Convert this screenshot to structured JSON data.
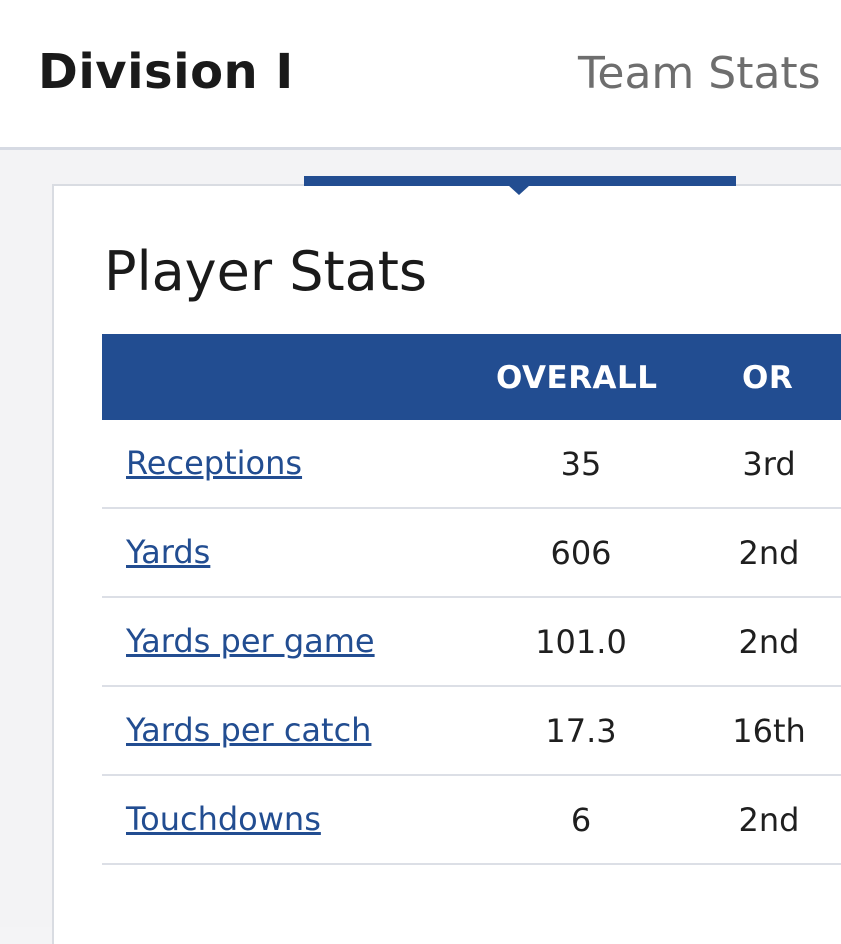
{
  "header": {
    "title": "Division I",
    "tab_team_stats": "Team Stats"
  },
  "section": {
    "title": "Player Stats"
  },
  "table": {
    "columns": [
      "",
      "OVERALL",
      "OR"
    ],
    "rows": [
      {
        "label": "Receptions",
        "overall": "35",
        "or": "3rd"
      },
      {
        "label": "Yards",
        "overall": "606",
        "or": "2nd"
      },
      {
        "label": "Yards per game",
        "overall": "101.0",
        "or": "2nd"
      },
      {
        "label": "Yards per catch",
        "overall": "17.3",
        "or": "16th"
      },
      {
        "label": "Touchdowns",
        "overall": "6",
        "or": "2nd"
      }
    ]
  },
  "colors": {
    "accent": "#224d91",
    "link": "#224d91",
    "muted_tab": "#6e6e6e"
  }
}
